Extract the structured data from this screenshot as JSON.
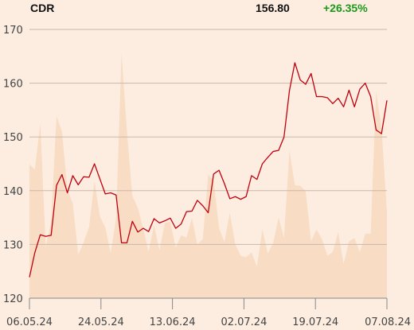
{
  "header": {
    "ticker": "CDR",
    "price": "156.80",
    "change": "+26.35%"
  },
  "colors": {
    "background": "#fcede0",
    "price_line": "#c0000f",
    "volume_area": "#f8dcc4",
    "grid": "#c9b8ab",
    "change_positive": "#1a9a1a"
  },
  "chart_data": {
    "type": "line",
    "ylim": [
      120,
      170
    ],
    "yticks": [
      120,
      130,
      140,
      150,
      160,
      170
    ],
    "xtick_labels": [
      "06.05.24",
      "24.05.24",
      "13.06.24",
      "02.07.24",
      "19.07.24",
      "07.08.24"
    ],
    "grid": true,
    "series": [
      {
        "kind": "price-line",
        "values": [
          123.9,
          128.5,
          131.8,
          131.5,
          131.7,
          141.0,
          143.0,
          139.6,
          142.8,
          141.1,
          142.6,
          142.5,
          145.0,
          142.2,
          139.4,
          139.6,
          139.2,
          130.3,
          130.3,
          134.3,
          132.3,
          133.0,
          132.4,
          134.8,
          134.0,
          134.4,
          134.9,
          133.0,
          133.8,
          136.1,
          136.2,
          138.2,
          137.2,
          135.9,
          143.1,
          143.8,
          141.3,
          138.5,
          138.9,
          138.4,
          138.9,
          142.8,
          142.1,
          145.0,
          146.2,
          147.3,
          147.5,
          150.0,
          158.6,
          163.8,
          160.6,
          159.8,
          161.8,
          157.5,
          157.5,
          157.3,
          156.2,
          157.2,
          155.6,
          158.7,
          155.6,
          158.9,
          160.0,
          157.5,
          151.3,
          150.6,
          156.8
        ]
      },
      {
        "kind": "volume-area",
        "values": [
          144.9,
          143.9,
          152.5,
          129.6,
          134.2,
          153.9,
          151.0,
          140.3,
          137.6,
          128.1,
          130.4,
          133.2,
          141.8,
          135.2,
          133.2,
          128.4,
          134.9,
          165.5,
          151.0,
          139.0,
          136.8,
          133.0,
          128.7,
          133.6,
          128.9,
          134.0,
          134.2,
          129.4,
          131.7,
          131.3,
          134.9,
          130.0,
          131.0,
          143.0,
          141.9,
          133.0,
          130.5,
          135.9,
          130.0,
          127.9,
          127.6,
          128.5,
          125.9,
          132.8,
          128.3,
          130.3,
          135.0,
          131.2,
          147.5,
          141.0,
          140.9,
          139.9,
          130.6,
          132.8,
          131.0,
          127.9,
          128.6,
          132.3,
          126.4,
          130.6,
          131.2,
          128.6,
          132.0,
          132.0,
          158.5,
          151.7,
          135.9
        ]
      }
    ]
  }
}
